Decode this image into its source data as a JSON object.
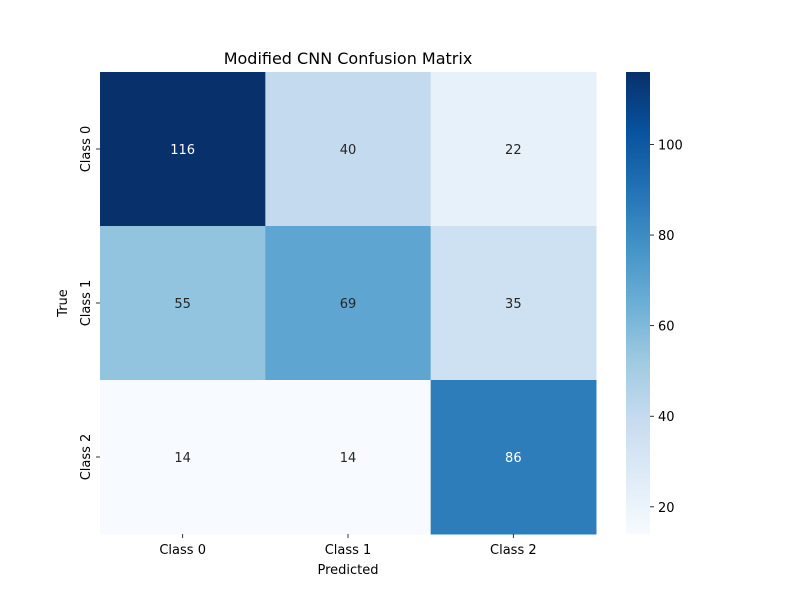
{
  "chart_data": {
    "type": "heatmap",
    "title": "Modified CNN Confusion Matrix",
    "xlabel": "Predicted",
    "ylabel": "True",
    "x_categories": [
      "Class 0",
      "Class 1",
      "Class 2"
    ],
    "y_categories": [
      "Class 0",
      "Class 1",
      "Class 2"
    ],
    "values": [
      [
        116,
        40,
        22
      ],
      [
        55,
        69,
        35
      ],
      [
        14,
        14,
        86
      ]
    ],
    "colormap": "Blues",
    "color_range": [
      14,
      116
    ],
    "colorbar_ticks": [
      20,
      40,
      60,
      80,
      100
    ],
    "grid": false
  }
}
